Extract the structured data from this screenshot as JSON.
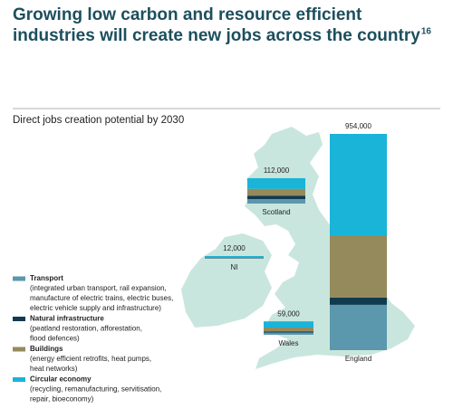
{
  "chart_data": {
    "type": "bar",
    "stacked": true,
    "title": [
      "Growing low carbon and resource efficient",
      "industries will create new jobs across the country"
    ],
    "title_note": "16",
    "subtitle": "Direct jobs creation potential by 2030",
    "categories": [
      "England",
      "Scotland",
      "NI",
      "Wales"
    ],
    "totals": [
      954000,
      112000,
      12000,
      59000
    ],
    "total_labels": [
      "954,000",
      "112,000",
      "12,000",
      "59,000"
    ],
    "series": [
      {
        "name": "Transport",
        "color": "#5b97ad",
        "values": [
          200000,
          20000,
          2000,
          10000
        ],
        "description": [
          "(integrated urban transport, rail expansion,",
          "manufacture of electric trains, electric buses,",
          "electric vehicle supply and infrastructure)"
        ]
      },
      {
        "name": "Natural infrastructure",
        "color": "#123a4e",
        "values": [
          32000,
          15000,
          1000,
          5000
        ],
        "description": [
          "(peatland restoration, afforestation,",
          "flood defences)"
        ]
      },
      {
        "name": "Buildings",
        "color": "#958a5c",
        "values": [
          275000,
          30000,
          5000,
          17000
        ],
        "description": [
          "(energy efficient retrofits, heat pumps,",
          "heat networks)"
        ]
      },
      {
        "name": "Circular economy",
        "color": "#19b4d8",
        "values": [
          447000,
          47000,
          4000,
          27000
        ],
        "description": [
          "(recycling, remanufacturing, servitisation,",
          "repair, bioeconomy)"
        ]
      }
    ]
  }
}
